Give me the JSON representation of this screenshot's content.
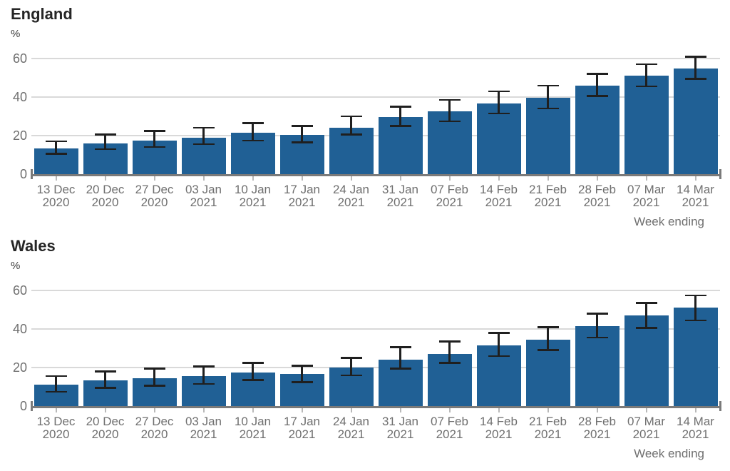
{
  "chart_data": [
    {
      "type": "bar",
      "title": "England",
      "unit": "%",
      "xlabel": "Week ending",
      "ylim": [
        0,
        65
      ],
      "yticks": [
        0,
        20,
        40,
        60
      ],
      "grid": true,
      "legend_position": "none",
      "categories": [
        "13 Dec",
        "20 Dec",
        "27 Dec",
        "03 Jan",
        "10 Jan",
        "17 Jan",
        "24 Jan",
        "31 Jan",
        "07 Feb",
        "14 Feb",
        "21 Feb",
        "28 Feb",
        "07 Mar",
        "14 Mar"
      ],
      "years": [
        "2020",
        "2020",
        "2020",
        "2021",
        "2021",
        "2021",
        "2021",
        "2021",
        "2021",
        "2021",
        "2021",
        "2021",
        "2021",
        "2021"
      ],
      "values": [
        13.5,
        16,
        17.5,
        19,
        21.5,
        20.5,
        24,
        29.5,
        32.5,
        36.5,
        39.5,
        46,
        51,
        55
      ],
      "ci_low": [
        10.5,
        13,
        14,
        15.5,
        17.5,
        16.5,
        20.5,
        25,
        27.5,
        31.5,
        34,
        40.5,
        45.5,
        49.5
      ],
      "ci_high": [
        17,
        20.5,
        22.5,
        24,
        26.5,
        25,
        30,
        35,
        38.5,
        43,
        46,
        52,
        57,
        61
      ]
    },
    {
      "type": "bar",
      "title": "Wales",
      "unit": "%",
      "xlabel": "Week ending",
      "ylim": [
        0,
        65
      ],
      "yticks": [
        0,
        20,
        40,
        60
      ],
      "grid": true,
      "legend_position": "none",
      "categories": [
        "13 Dec",
        "20 Dec",
        "27 Dec",
        "03 Jan",
        "10 Jan",
        "17 Jan",
        "24 Jan",
        "31 Jan",
        "07 Feb",
        "14 Feb",
        "21 Feb",
        "28 Feb",
        "07 Mar",
        "14 Mar"
      ],
      "years": [
        "2020",
        "2020",
        "2020",
        "2021",
        "2021",
        "2021",
        "2021",
        "2021",
        "2021",
        "2021",
        "2021",
        "2021",
        "2021",
        "2021"
      ],
      "values": [
        11,
        13.5,
        14.5,
        15.5,
        17.5,
        16.5,
        20,
        24,
        27,
        31.5,
        34.5,
        41.5,
        47,
        51
      ],
      "ci_low": [
        7.5,
        9.5,
        10.5,
        11.5,
        13.5,
        12.5,
        16,
        19.5,
        22.5,
        26,
        29,
        35.5,
        40.5,
        44.5
      ],
      "ci_high": [
        15.5,
        18,
        19.5,
        20.5,
        22.5,
        21,
        25,
        30.5,
        33.5,
        38,
        41,
        48,
        53.5,
        57.5
      ]
    }
  ],
  "colors": {
    "bar": "#206095",
    "error_bar": "#1f1f1f",
    "axis": "#7a7a7a",
    "tick": "#b9b9b9",
    "gridline": "#d9d9d9",
    "title_text": "#262626",
    "unit_text": "#3d3d3d",
    "label_text": "#6f6f6f",
    "background": "#ffffff"
  }
}
